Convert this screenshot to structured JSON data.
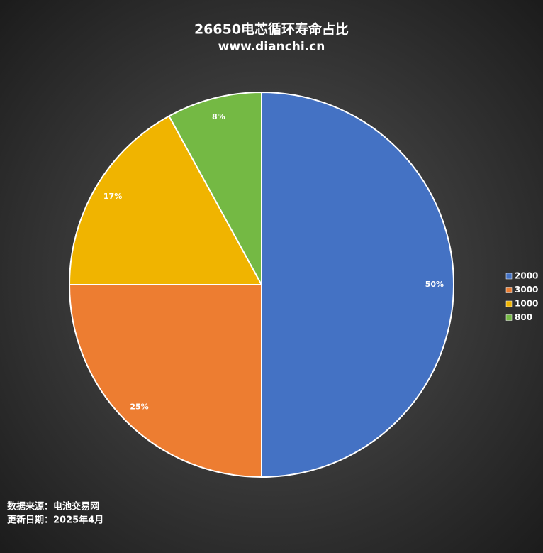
{
  "chart_data": {
    "type": "pie",
    "title": "26650电芯循环寿命占比",
    "subtitle": "www.dianchi.cn",
    "categories": [
      "2000",
      "3000",
      "1000",
      "800"
    ],
    "values": [
      50,
      25,
      17,
      8
    ],
    "value_labels": [
      "50%",
      "25%",
      "17%",
      "8%"
    ],
    "colors": [
      "#4472c4",
      "#ed7d31",
      "#f0b400",
      "#74b944"
    ],
    "legend": "right",
    "notes": [
      "数据来源：电池交易网",
      "更新日期：2025年4月"
    ]
  }
}
